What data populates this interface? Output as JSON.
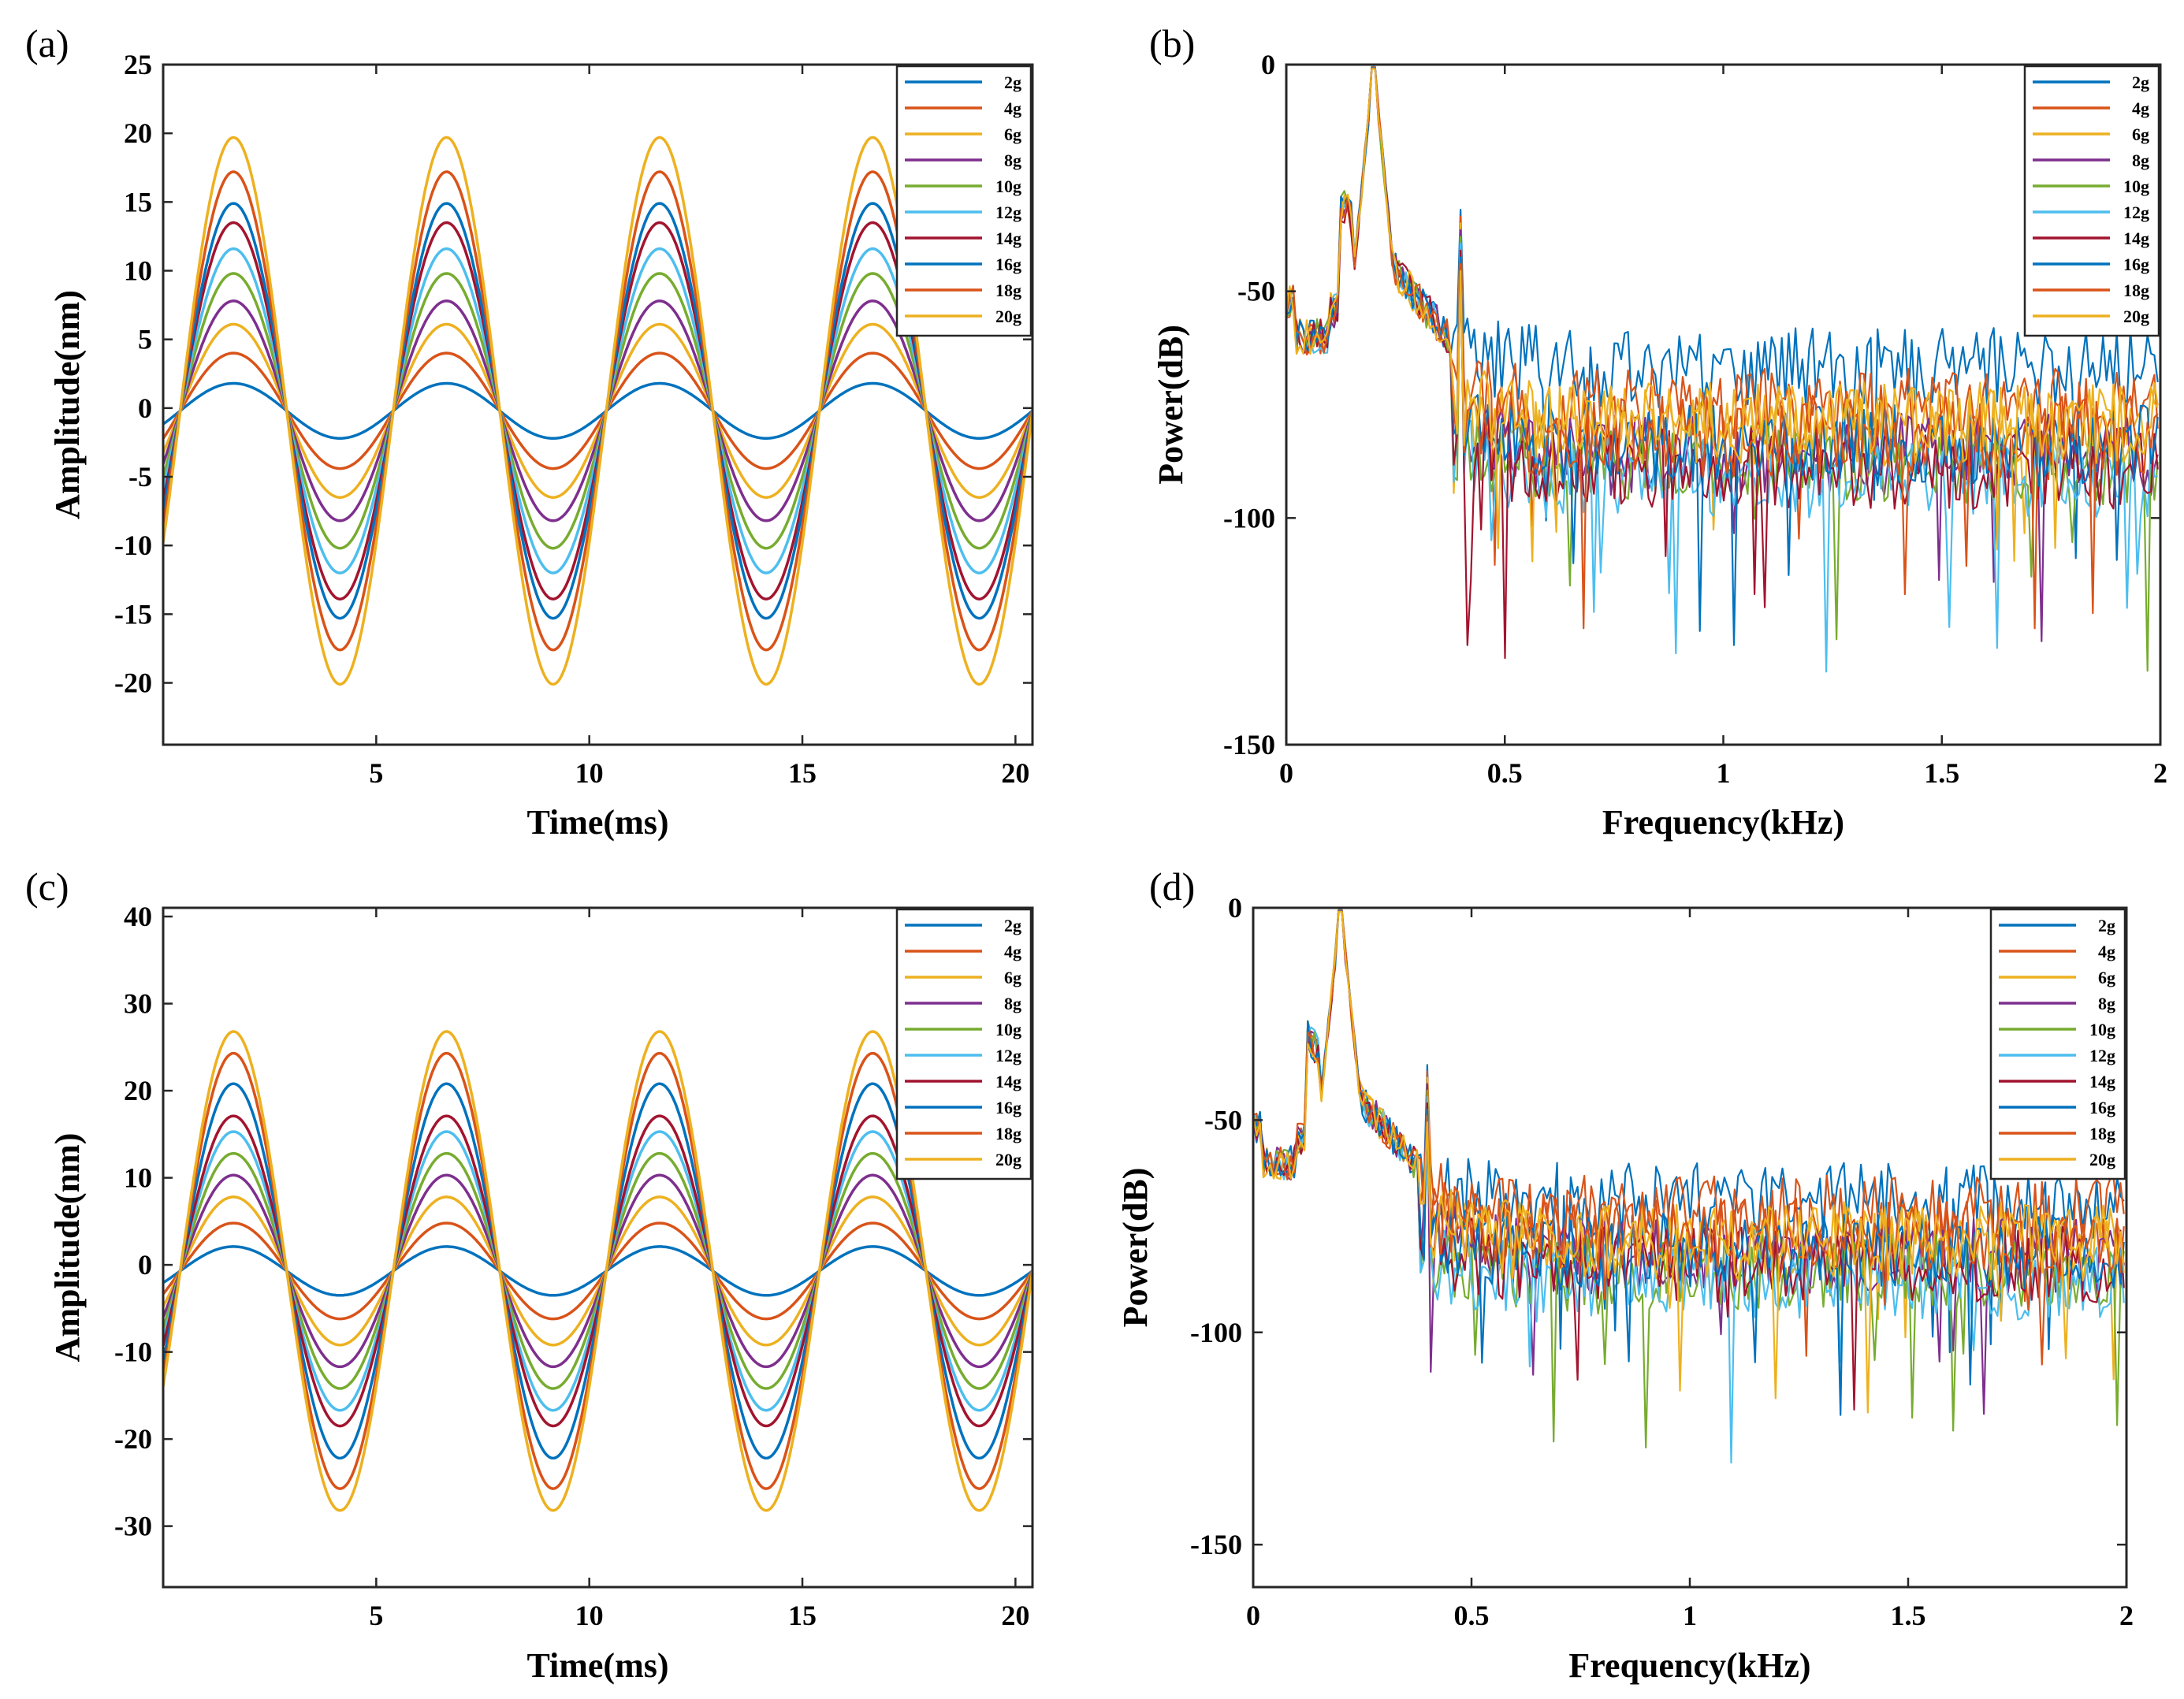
{
  "colors": {
    "palette": [
      "#0072BD",
      "#D95319",
      "#EDB120",
      "#7E2F8E",
      "#77AC30",
      "#4DBEEE",
      "#A2142F",
      "#0072BD",
      "#D95319",
      "#EDB120"
    ]
  },
  "chart_data": [
    {
      "type": "line",
      "panel_label": "(a)",
      "title": "",
      "xlabel": "Time(ms)",
      "ylabel": "Amplitude(nm)",
      "xlim": [
        0,
        20.4
      ],
      "ylim": [
        -24.5,
        25
      ],
      "xticks": [
        5,
        10,
        15,
        20
      ],
      "yticks": [
        -20,
        -15,
        -10,
        -5,
        0,
        5,
        10,
        15,
        20,
        25
      ],
      "legend_position": "top-right",
      "signal": "sine",
      "frequency_khz": 0.2,
      "phase_ms": 0.4,
      "series": [
        {
          "name": "2g",
          "amplitude": 2
        },
        {
          "name": "4g",
          "amplitude": 4.2
        },
        {
          "name": "6g",
          "amplitude": 6.3
        },
        {
          "name": "8g",
          "amplitude": 8
        },
        {
          "name": "10g",
          "amplitude": 10
        },
        {
          "name": "12g",
          "amplitude": 11.8
        },
        {
          "name": "14g",
          "amplitude": 13.7
        },
        {
          "name": "16g",
          "amplitude": 15.1
        },
        {
          "name": "18g",
          "amplitude": 17.4
        },
        {
          "name": "20g",
          "amplitude": 19.9
        }
      ]
    },
    {
      "type": "line",
      "panel_label": "(b)",
      "title": "",
      "xlabel": "Frequency(kHz)",
      "ylabel": "Power(dB)",
      "xlim": [
        0,
        2
      ],
      "ylim": [
        -150,
        0
      ],
      "xticks": [
        0,
        0.5,
        1,
        1.5,
        2
      ],
      "xtick_labels": [
        "0",
        "0.5",
        "1",
        "1.5",
        "2"
      ],
      "yticks": [
        -150,
        -100,
        -50,
        0
      ],
      "legend_position": "top-right",
      "signal": "spectrum",
      "fundamental_khz": 0.2,
      "harmonic_khz": 0.4,
      "harmonic_peak_db": -32,
      "series": [
        {
          "name": "2g",
          "noise_floor_db": -67
        },
        {
          "name": "4g",
          "noise_floor_db": -76
        },
        {
          "name": "6g",
          "noise_floor_db": -80
        },
        {
          "name": "8g",
          "noise_floor_db": -86
        },
        {
          "name": "10g",
          "noise_floor_db": -88
        },
        {
          "name": "12g",
          "noise_floor_db": -91
        },
        {
          "name": "14g",
          "noise_floor_db": -89
        },
        {
          "name": "16g",
          "noise_floor_db": -84
        },
        {
          "name": "18g",
          "noise_floor_db": -82
        },
        {
          "name": "20g",
          "noise_floor_db": -79
        }
      ]
    },
    {
      "type": "line",
      "panel_label": "(c)",
      "title": "",
      "xlabel": "Time(ms)",
      "ylabel": "Amplitude(nm)",
      "xlim": [
        0,
        20.4
      ],
      "ylim": [
        -37,
        41
      ],
      "xticks": [
        5,
        10,
        15,
        20
      ],
      "yticks": [
        -30,
        -20,
        -10,
        0,
        10,
        20,
        30,
        40
      ],
      "legend_position": "top-right",
      "signal": "sine",
      "frequency_khz": 0.2,
      "phase_ms": 0.4,
      "series": [
        {
          "name": "2g",
          "amplitude": 2.8
        },
        {
          "name": "4g",
          "amplitude": 5.5
        },
        {
          "name": "6g",
          "amplitude": 8.5
        },
        {
          "name": "8g",
          "amplitude": 11
        },
        {
          "name": "10g",
          "amplitude": 13.5
        },
        {
          "name": "12g",
          "amplitude": 16
        },
        {
          "name": "14g",
          "amplitude": 17.8
        },
        {
          "name": "16g",
          "amplitude": 21.5
        },
        {
          "name": "18g",
          "amplitude": 25
        },
        {
          "name": "20g",
          "amplitude": 27.5
        }
      ]
    },
    {
      "type": "line",
      "panel_label": "(d)",
      "title": "",
      "xlabel": "Frequency(kHz)",
      "ylabel": "Power(dB)",
      "xlim": [
        0,
        2
      ],
      "ylim": [
        -160,
        0
      ],
      "xticks": [
        0,
        0.5,
        1,
        1.5,
        2
      ],
      "xtick_labels": [
        "0",
        "0.5",
        "1",
        "1.5",
        "2"
      ],
      "yticks": [
        -150,
        -100,
        -50,
        0
      ],
      "legend_position": "top-right",
      "signal": "spectrum",
      "fundamental_khz": 0.2,
      "harmonic_khz": 0.4,
      "harmonic_peak_db": -37,
      "series": [
        {
          "name": "2g",
          "noise_floor_db": -69
        },
        {
          "name": "4g",
          "noise_floor_db": -72
        },
        {
          "name": "6g",
          "noise_floor_db": -78
        },
        {
          "name": "8g",
          "noise_floor_db": -82
        },
        {
          "name": "10g",
          "noise_floor_db": -86
        },
        {
          "name": "12g",
          "noise_floor_db": -88
        },
        {
          "name": "14g",
          "noise_floor_db": -84
        },
        {
          "name": "16g",
          "noise_floor_db": -81
        },
        {
          "name": "18g",
          "noise_floor_db": -77
        },
        {
          "name": "20g",
          "noise_floor_db": -79
        }
      ]
    }
  ]
}
